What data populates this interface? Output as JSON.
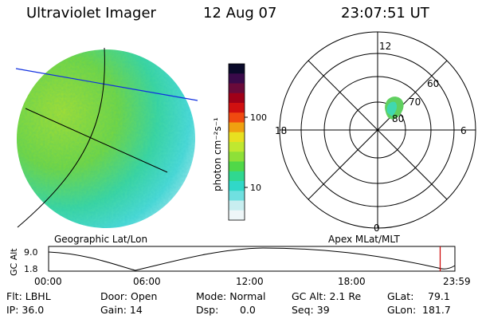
{
  "header": {
    "instrument": "Ultraviolet Imager",
    "date": "12 Aug 07",
    "time": "23:07:51 UT"
  },
  "left_panel": {
    "label": "Geographic Lat/Lon"
  },
  "right_panel": {
    "label": "Apex MLat/MLT",
    "mlt_labels": {
      "top": "12",
      "bottom": "0",
      "left": "18",
      "right": "6"
    },
    "lat_labels": [
      "60",
      "70",
      "80"
    ]
  },
  "colorbar": {
    "unit_label": "photon cm⁻²s⁻¹",
    "tick_labels": [
      "100",
      "10"
    ],
    "colors": [
      "#0a0a2a",
      "#3a0a4a",
      "#6a0a3a",
      "#a00018",
      "#d01010",
      "#f04a10",
      "#f0a010",
      "#e8e020",
      "#c0e830",
      "#8ee038",
      "#50d848",
      "#30d890",
      "#30d8c8",
      "#70e0e0",
      "#c8eef0",
      "#eef6f8"
    ]
  },
  "timeline": {
    "y_label": "GC Alt",
    "y_ticks": [
      "9.0",
      "1.8"
    ],
    "x_ticks": [
      "00:00",
      "06:00",
      "12:00",
      "18:00",
      "23:59"
    ],
    "current_marker_hours": 23.13
  },
  "info": {
    "filter": "Flt: LBHL",
    "ip": "IP: 36.0",
    "door": "Door: Open",
    "gain": "Gain: 14",
    "mode": "Mode: Normal",
    "dsp_label": "Dsp:",
    "dsp_value": "0.0",
    "gc_alt": "GC Alt: 2.1 Re",
    "seq": "Seq: 39",
    "glat": "GLat:",
    "glat_value": "79.1",
    "glon": "GLon:",
    "glon_value": "181.7"
  }
}
